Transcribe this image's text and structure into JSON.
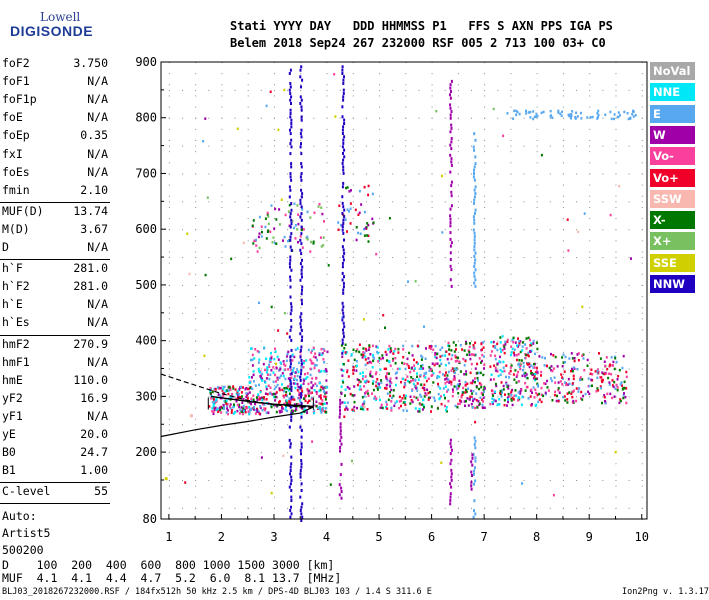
{
  "logo": {
    "line1": "Lowell",
    "line2": "DIGISONDE"
  },
  "header": {
    "row1": "Stati YYYY DAY   DDD HHMMSS P1   FFS S AXN PPS IGA PS",
    "row2": "Belem 2018 Sep24 267 232000 RSF 005 2 713 100 03+ C0"
  },
  "params_group1": [
    {
      "label": "foF2",
      "value": "3.750"
    },
    {
      "label": "foF1",
      "value": "N/A"
    },
    {
      "label": "foF1p",
      "value": "N/A"
    },
    {
      "label": "foE",
      "value": "N/A"
    },
    {
      "label": "foEp",
      "value": "0.35"
    },
    {
      "label": "fxI",
      "value": "N/A"
    },
    {
      "label": "foEs",
      "value": "N/A"
    },
    {
      "label": "fmin",
      "value": "2.10"
    }
  ],
  "params_group2": [
    {
      "label": "MUF(D)",
      "value": "13.74"
    },
    {
      "label": "M(D)",
      "value": "3.67"
    },
    {
      "label": "D",
      "value": "N/A"
    }
  ],
  "params_group3": [
    {
      "label": "h`F",
      "value": "281.0"
    },
    {
      "label": "h`F2",
      "value": "281.0"
    },
    {
      "label": "h`E",
      "value": "N/A"
    },
    {
      "label": "h`Es",
      "value": "N/A"
    }
  ],
  "params_group4": [
    {
      "label": "hmF2",
      "value": "270.9"
    },
    {
      "label": "hmF1",
      "value": "N/A"
    },
    {
      "label": "hmE",
      "value": "110.0"
    },
    {
      "label": "yF2",
      "value": "16.9"
    },
    {
      "label": "yF1",
      "value": "N/A"
    },
    {
      "label": "yE",
      "value": "20.0"
    },
    {
      "label": "B0",
      "value": "24.7"
    },
    {
      "label": "B1",
      "value": "1.00"
    }
  ],
  "clevel": {
    "label": "C-level",
    "value": "55"
  },
  "auto": {
    "line1": "Auto:",
    "line2": "Artist5",
    "line3": "500200"
  },
  "legend": [
    {
      "label": "NoVal",
      "color": "#a8a8a8"
    },
    {
      "label": "NNE",
      "color": "#00e8f8"
    },
    {
      "label": "E",
      "color": "#58a8f0"
    },
    {
      "label": "W",
      "color": "#a000a8"
    },
    {
      "label": "Vo-",
      "color": "#f8409c"
    },
    {
      "label": "Vo+",
      "color": "#f00028"
    },
    {
      "label": "SSW",
      "color": "#f8b8b0"
    },
    {
      "label": "X-",
      "color": "#007800"
    },
    {
      "label": "X+",
      "color": "#78c060"
    },
    {
      "label": "SSE",
      "color": "#d0d000"
    },
    {
      "label": "NNW",
      "color": "#2000c0"
    }
  ],
  "muf_table": {
    "d_row": "D    100  200  400  600  800 1000 1500 3000 [km]",
    "muf_row": "MUF  4.1  4.1  4.4  4.7  5.2  6.0  8.1 13.7 [MHz]"
  },
  "footer": {
    "left": "BLJ03_2018267232000.RSF / 184fx512h 50 kHz 2.5 km / DPS-4D BLJ03 103 / 1.4 S 311.6 E",
    "right": "Ion2Png v. 1.3.17"
  },
  "chart_data": {
    "type": "scatter",
    "x_ticks": [
      "1",
      "2",
      "3",
      "4",
      "5",
      "6",
      "7",
      "8",
      "9",
      "10"
    ],
    "y_ticks": [
      "80",
      "200",
      "300",
      "400",
      "500",
      "600",
      "700",
      "800",
      "900"
    ],
    "xlim": [
      0.85,
      10.1
    ],
    "ylim": [
      80,
      900
    ],
    "x_unit": "MHz",
    "y_unit": "km",
    "clusters": [
      {
        "x0": 1.75,
        "x1": 4.0,
        "y0": 270,
        "y1": 320,
        "count": 420,
        "colors": [
          "#f00028",
          "#f8409c",
          "#a000a8",
          "#58a8f0",
          "#007800",
          "#00e8f8"
        ]
      },
      {
        "x0": 2.5,
        "x1": 4.0,
        "y0": 320,
        "y1": 390,
        "count": 200,
        "colors": [
          "#58a8f0",
          "#00e8f8",
          "#a000a8",
          "#f8409c"
        ]
      },
      {
        "x0": 4.25,
        "x1": 6.3,
        "y0": 275,
        "y1": 395,
        "count": 420,
        "colors": [
          "#f00028",
          "#f8409c",
          "#a000a8",
          "#58a8f0",
          "#007800",
          "#00e8f8"
        ]
      },
      {
        "x0": 6.3,
        "x1": 7.0,
        "y0": 280,
        "y1": 400,
        "count": 180,
        "colors": [
          "#f00028",
          "#a000a8",
          "#f8409c",
          "#007800",
          "#58a8f0"
        ]
      },
      {
        "x0": 7.1,
        "x1": 8.0,
        "y0": 285,
        "y1": 410,
        "count": 240,
        "colors": [
          "#58a8f0",
          "#f00028",
          "#a000a8",
          "#007800",
          "#f8409c",
          "#00e8f8"
        ]
      },
      {
        "x0": 8.0,
        "x1": 9.7,
        "y0": 290,
        "y1": 380,
        "count": 220,
        "colors": [
          "#58a8f0",
          "#a000a8",
          "#f00028",
          "#007800",
          "#f8409c"
        ]
      },
      {
        "x0": 2.5,
        "x1": 4.0,
        "y0": 560,
        "y1": 650,
        "count": 80,
        "colors": [
          "#58a8f0",
          "#007800",
          "#a000a8",
          "#f8409c",
          "#78c060"
        ]
      },
      {
        "x0": 4.2,
        "x1": 4.9,
        "y0": 580,
        "y1": 680,
        "count": 45,
        "colors": [
          "#58a8f0",
          "#007800",
          "#a000a8",
          "#f00028"
        ]
      },
      {
        "x0": 7.4,
        "x1": 9.9,
        "y0": 800,
        "y1": 815,
        "count": 70,
        "colors": [
          "#58a8f0"
        ]
      },
      {
        "x0": 1.2,
        "x1": 10.0,
        "y0": 90,
        "y1": 890,
        "count": 70,
        "colors": [
          "#58a8f0",
          "#a000a8",
          "#f8409c",
          "#f00028",
          "#007800",
          "#d0d000",
          "#f8b8b0",
          "#78c060"
        ]
      }
    ],
    "columns": [
      {
        "x": 3.3,
        "y0": 80,
        "y1": 900,
        "color": "#2000c0"
      },
      {
        "x": 3.5,
        "y0": 80,
        "y1": 900,
        "color": "#2000c0"
      },
      {
        "x": 4.3,
        "y0": 380,
        "y1": 900,
        "color": "#2000c0"
      },
      {
        "x": 6.35,
        "y0": 500,
        "y1": 880,
        "color": "#a000a8"
      },
      {
        "x": 6.35,
        "y0": 110,
        "y1": 230,
        "color": "#a000a8"
      },
      {
        "x": 6.8,
        "y0": 500,
        "y1": 780,
        "color": "#58a8f0"
      },
      {
        "x": 6.8,
        "y0": 80,
        "y1": 240,
        "color": "#58a8f0"
      },
      {
        "x": 6.75,
        "y0": 130,
        "y1": 210,
        "color": "#a000a8"
      },
      {
        "x": 4.25,
        "y0": 120,
        "y1": 320,
        "color": "#a000a8"
      }
    ],
    "profile_line": [
      [
        0.85,
        228
      ],
      [
        1.5,
        240
      ],
      [
        2.0,
        248
      ],
      [
        2.5,
        255
      ],
      [
        3.0,
        263
      ],
      [
        3.5,
        270
      ],
      [
        3.75,
        281
      ]
    ],
    "dashed_trace": [
      [
        0.85,
        340
      ],
      [
        1.5,
        320
      ],
      [
        2.0,
        305
      ],
      [
        2.5,
        293
      ],
      [
        3.0,
        285
      ],
      [
        3.5,
        281
      ],
      [
        3.75,
        281
      ]
    ],
    "solid_trace": [
      [
        1.8,
        300
      ],
      [
        2.2,
        295
      ],
      [
        2.6,
        290
      ],
      [
        3.0,
        286
      ],
      [
        3.4,
        284
      ],
      [
        3.75,
        282
      ]
    ],
    "cursor_ticks": [
      {
        "x": 1.75,
        "y": 280
      },
      {
        "x": 3.75,
        "y": 280
      }
    ],
    "cursor_marks": [
      {
        "x": 1.4,
        "y": 268,
        "color": "#f8b8b0"
      },
      {
        "x": 0.92,
        "y": 155,
        "color": "#d0d000"
      }
    ]
  }
}
